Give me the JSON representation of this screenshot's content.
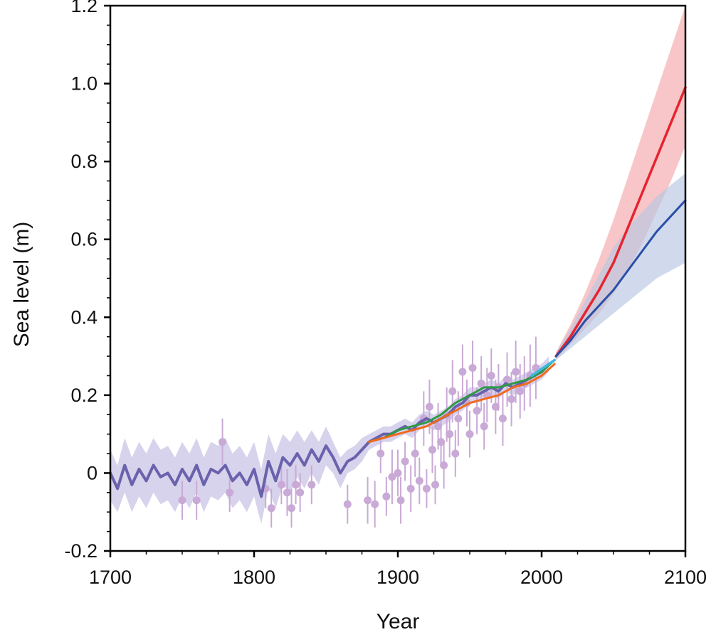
{
  "chart_data": {
    "type": "line",
    "title": "",
    "xlabel": "Year",
    "ylabel": "Sea level (m)",
    "xlim": [
      1700,
      2100
    ],
    "ylim": [
      -0.2,
      1.2
    ],
    "x_ticks": [
      1700,
      1800,
      1900,
      2000,
      2100
    ],
    "x_tick_labels": [
      "1700",
      "1800",
      "1900",
      "2000",
      "2100"
    ],
    "y_ticks": [
      -0.2,
      0,
      0.2,
      0.4,
      0.6,
      0.8,
      1.0,
      1.2
    ],
    "y_tick_labels": [
      "-0.2",
      "0",
      "0.2",
      "0.4",
      "0.6",
      "0.8",
      "1.0",
      "1.2"
    ],
    "grid": false,
    "legend": "none",
    "colors": {
      "paleo": "#6a62ac",
      "paleo_band": "#c9c4e6",
      "proxy_points": "#c9a9d6",
      "green": "#2e9a45",
      "orange": "#ef6a1c",
      "cyan": "#3fb9df",
      "red": "#e8232e",
      "red_band": "#f5a7aa",
      "blue": "#2a4fa8",
      "blue_band": "#b7c6e2"
    },
    "series": [
      {
        "x": [
          1700,
          1705,
          1710,
          1715,
          1720,
          1725,
          1730,
          1735,
          1740,
          1745,
          1750,
          1755,
          1760,
          1765,
          1770,
          1775,
          1780,
          1785,
          1790,
          1795,
          1800,
          1805,
          1810,
          1815,
          1820,
          1825,
          1830,
          1835,
          1840,
          1845,
          1850,
          1855,
          1860,
          1865,
          1870,
          1875,
          1880,
          1885,
          1890,
          1895,
          1900,
          1905,
          1910,
          1915,
          1920,
          1925,
          1930,
          1935,
          1940,
          1945,
          1950,
          1955,
          1960,
          1965,
          1970,
          1975,
          1980,
          1985,
          1990,
          1995,
          2000,
          2005
        ],
        "y": [
          0.0,
          -0.04,
          0.02,
          -0.03,
          0.01,
          -0.02,
          0.02,
          -0.01,
          0.0,
          -0.03,
          0.01,
          -0.02,
          0.02,
          -0.03,
          0.01,
          0.0,
          0.02,
          -0.02,
          0.0,
          -0.03,
          0.01,
          -0.06,
          0.03,
          -0.02,
          0.04,
          0.02,
          0.05,
          0.02,
          0.06,
          0.03,
          0.07,
          0.04,
          0.0,
          0.03,
          0.04,
          0.06,
          0.08,
          0.09,
          0.1,
          0.1,
          0.11,
          0.12,
          0.11,
          0.13,
          0.14,
          0.13,
          0.14,
          0.15,
          0.17,
          0.18,
          0.2,
          0.2,
          0.21,
          0.22,
          0.21,
          0.23,
          0.22,
          0.23,
          0.24,
          0.25,
          0.26,
          0.28
        ],
        "band_upper": [
          0.06,
          0.02,
          0.09,
          0.04,
          0.08,
          0.05,
          0.09,
          0.06,
          0.07,
          0.04,
          0.08,
          0.05,
          0.09,
          0.04,
          0.08,
          0.07,
          0.09,
          0.05,
          0.07,
          0.04,
          0.08,
          0.01,
          0.1,
          0.05,
          0.1,
          0.08,
          0.11,
          0.08,
          0.11,
          0.08,
          0.12,
          0.08,
          0.04,
          0.06,
          0.07,
          0.09,
          0.1,
          0.11,
          0.12,
          0.12,
          0.13,
          0.14,
          0.13,
          0.15,
          0.16,
          0.15,
          0.16,
          0.17,
          0.19,
          0.2,
          0.22,
          0.22,
          0.23,
          0.24,
          0.23,
          0.25,
          0.24,
          0.25,
          0.26,
          0.27,
          0.28,
          0.3
        ],
        "band_lower": [
          -0.07,
          -0.1,
          -0.05,
          -0.1,
          -0.06,
          -0.09,
          -0.05,
          -0.08,
          -0.07,
          -0.1,
          -0.06,
          -0.09,
          -0.05,
          -0.1,
          -0.06,
          -0.07,
          -0.05,
          -0.09,
          -0.07,
          -0.1,
          -0.06,
          -0.13,
          -0.04,
          -0.09,
          -0.03,
          -0.05,
          -0.01,
          -0.04,
          0.0,
          -0.03,
          0.02,
          0.0,
          -0.04,
          0.0,
          0.01,
          0.03,
          0.06,
          0.07,
          0.08,
          0.08,
          0.09,
          0.1,
          0.09,
          0.11,
          0.12,
          0.11,
          0.12,
          0.13,
          0.15,
          0.16,
          0.18,
          0.18,
          0.19,
          0.2,
          0.19,
          0.21,
          0.2,
          0.21,
          0.22,
          0.23,
          0.24,
          0.26
        ]
      },
      {
        "x": [
          1880,
          1890,
          1900,
          1910,
          1920,
          1930,
          1940,
          1950,
          1960,
          1970,
          1980,
          1990,
          2000,
          2009
        ],
        "y": [
          0.08,
          0.09,
          0.11,
          0.12,
          0.13,
          0.15,
          0.18,
          0.2,
          0.22,
          0.22,
          0.23,
          0.24,
          0.26,
          0.29
        ]
      },
      {
        "x": [
          1880,
          1890,
          1900,
          1910,
          1920,
          1930,
          1940,
          1950,
          1960,
          1970,
          1980,
          1990,
          2000,
          2009
        ],
        "y": [
          0.08,
          0.09,
          0.1,
          0.11,
          0.12,
          0.14,
          0.16,
          0.18,
          0.19,
          0.2,
          0.22,
          0.23,
          0.25,
          0.28
        ]
      },
      {
        "x": [
          1993,
          1997,
          2001,
          2005,
          2009
        ],
        "y": [
          0.25,
          0.26,
          0.27,
          0.28,
          0.29
        ]
      },
      {
        "x": [
          2010,
          2020,
          2030,
          2040,
          2050,
          2060,
          2070,
          2080,
          2090,
          2100
        ],
        "y": [
          0.3,
          0.35,
          0.41,
          0.47,
          0.54,
          0.63,
          0.72,
          0.81,
          0.9,
          0.99
        ],
        "band_upper": [
          0.31,
          0.38,
          0.46,
          0.55,
          0.65,
          0.76,
          0.87,
          0.98,
          1.09,
          1.2
        ],
        "band_lower": [
          0.29,
          0.33,
          0.37,
          0.41,
          0.46,
          0.52,
          0.59,
          0.67,
          0.75,
          0.84
        ]
      },
      {
        "x": [
          2010,
          2020,
          2030,
          2040,
          2050,
          2060,
          2070,
          2080,
          2090,
          2100
        ],
        "y": [
          0.3,
          0.34,
          0.39,
          0.43,
          0.47,
          0.52,
          0.57,
          0.62,
          0.66,
          0.7
        ],
        "band_upper": [
          0.31,
          0.37,
          0.44,
          0.51,
          0.58,
          0.63,
          0.67,
          0.71,
          0.74,
          0.77
        ],
        "band_lower": [
          0.29,
          0.32,
          0.35,
          0.38,
          0.41,
          0.44,
          0.47,
          0.5,
          0.52,
          0.54
        ]
      }
    ],
    "proxy_points": [
      {
        "x": 1750,
        "y": -0.07,
        "e": 0.05
      },
      {
        "x": 1760,
        "y": -0.07,
        "e": 0.05
      },
      {
        "x": 1778,
        "y": 0.08,
        "e": 0.06
      },
      {
        "x": 1783,
        "y": -0.05,
        "e": 0.05
      },
      {
        "x": 1808,
        "y": -0.04,
        "e": 0.05
      },
      {
        "x": 1812,
        "y": -0.09,
        "e": 0.05
      },
      {
        "x": 1819,
        "y": -0.03,
        "e": 0.05
      },
      {
        "x": 1823,
        "y": -0.05,
        "e": 0.06
      },
      {
        "x": 1826,
        "y": -0.09,
        "e": 0.05
      },
      {
        "x": 1829,
        "y": -0.03,
        "e": 0.05
      },
      {
        "x": 1832,
        "y": -0.05,
        "e": 0.05
      },
      {
        "x": 1840,
        "y": -0.03,
        "e": 0.05
      },
      {
        "x": 1865,
        "y": -0.08,
        "e": 0.05
      },
      {
        "x": 1879,
        "y": -0.07,
        "e": 0.06
      },
      {
        "x": 1884,
        "y": -0.08,
        "e": 0.06
      },
      {
        "x": 1888,
        "y": 0.05,
        "e": 0.05
      },
      {
        "x": 1892,
        "y": -0.06,
        "e": 0.05
      },
      {
        "x": 1896,
        "y": -0.01,
        "e": 0.07
      },
      {
        "x": 1900,
        "y": 0.0,
        "e": 0.06
      },
      {
        "x": 1902,
        "y": -0.07,
        "e": 0.06
      },
      {
        "x": 1905,
        "y": 0.03,
        "e": 0.05
      },
      {
        "x": 1909,
        "y": -0.04,
        "e": 0.06
      },
      {
        "x": 1912,
        "y": 0.05,
        "e": 0.06
      },
      {
        "x": 1915,
        "y": -0.02,
        "e": 0.06
      },
      {
        "x": 1918,
        "y": 0.14,
        "e": 0.07
      },
      {
        "x": 1920,
        "y": -0.04,
        "e": 0.05
      },
      {
        "x": 1922,
        "y": 0.17,
        "e": 0.07
      },
      {
        "x": 1924,
        "y": 0.06,
        "e": 0.06
      },
      {
        "x": 1926,
        "y": -0.03,
        "e": 0.05
      },
      {
        "x": 1928,
        "y": 0.12,
        "e": 0.06
      },
      {
        "x": 1930,
        "y": 0.08,
        "e": 0.06
      },
      {
        "x": 1932,
        "y": 0.02,
        "e": 0.06
      },
      {
        "x": 1934,
        "y": 0.15,
        "e": 0.07
      },
      {
        "x": 1936,
        "y": 0.1,
        "e": 0.06
      },
      {
        "x": 1938,
        "y": 0.21,
        "e": 0.08
      },
      {
        "x": 1940,
        "y": 0.05,
        "e": 0.06
      },
      {
        "x": 1942,
        "y": 0.14,
        "e": 0.07
      },
      {
        "x": 1945,
        "y": 0.26,
        "e": 0.07
      },
      {
        "x": 1948,
        "y": 0.18,
        "e": 0.06
      },
      {
        "x": 1950,
        "y": 0.1,
        "e": 0.06
      },
      {
        "x": 1952,
        "y": 0.27,
        "e": 0.07
      },
      {
        "x": 1955,
        "y": 0.16,
        "e": 0.06
      },
      {
        "x": 1958,
        "y": 0.23,
        "e": 0.07
      },
      {
        "x": 1960,
        "y": 0.12,
        "e": 0.06
      },
      {
        "x": 1962,
        "y": 0.2,
        "e": 0.07
      },
      {
        "x": 1965,
        "y": 0.25,
        "e": 0.07
      },
      {
        "x": 1968,
        "y": 0.17,
        "e": 0.07
      },
      {
        "x": 1970,
        "y": 0.22,
        "e": 0.06
      },
      {
        "x": 1973,
        "y": 0.14,
        "e": 0.07
      },
      {
        "x": 1976,
        "y": 0.24,
        "e": 0.07
      },
      {
        "x": 1979,
        "y": 0.19,
        "e": 0.07
      },
      {
        "x": 1982,
        "y": 0.26,
        "e": 0.08
      },
      {
        "x": 1985,
        "y": 0.21,
        "e": 0.07
      },
      {
        "x": 1988,
        "y": 0.23,
        "e": 0.07
      },
      {
        "x": 1992,
        "y": 0.25,
        "e": 0.08
      },
      {
        "x": 1996,
        "y": 0.27,
        "e": 0.08
      }
    ]
  }
}
